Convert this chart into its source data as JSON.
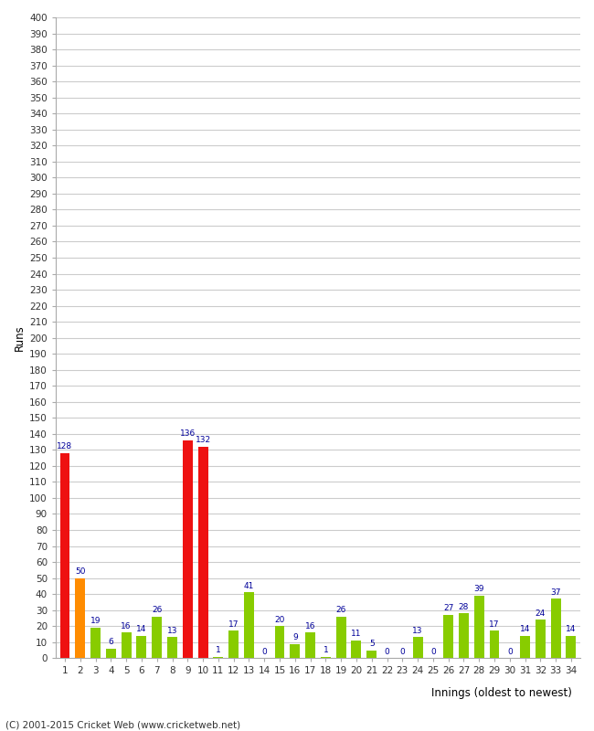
{
  "innings": [
    1,
    2,
    3,
    4,
    5,
    6,
    7,
    8,
    9,
    10,
    11,
    12,
    13,
    14,
    15,
    16,
    17,
    18,
    19,
    20,
    21,
    22,
    23,
    24,
    25,
    26,
    27,
    28,
    29,
    30,
    31,
    32,
    33,
    34
  ],
  "runs": [
    128,
    50,
    19,
    6,
    16,
    14,
    26,
    13,
    136,
    132,
    1,
    17,
    41,
    0,
    20,
    9,
    16,
    1,
    26,
    11,
    5,
    0,
    0,
    13,
    0,
    27,
    28,
    39,
    17,
    0,
    14,
    24,
    37,
    14
  ],
  "colors": [
    "#ee1111",
    "#ff8c00",
    "#88cc00",
    "#88cc00",
    "#88cc00",
    "#88cc00",
    "#88cc00",
    "#88cc00",
    "#ee1111",
    "#ee1111",
    "#88cc00",
    "#88cc00",
    "#88cc00",
    "#88cc00",
    "#88cc00",
    "#88cc00",
    "#88cc00",
    "#88cc00",
    "#88cc00",
    "#88cc00",
    "#88cc00",
    "#88cc00",
    "#88cc00",
    "#88cc00",
    "#88cc00",
    "#88cc00",
    "#88cc00",
    "#88cc00",
    "#88cc00",
    "#88cc00",
    "#88cc00",
    "#88cc00",
    "#88cc00",
    "#88cc00"
  ],
  "xlabel": "Innings (oldest to newest)",
  "ylabel": "Runs",
  "ytick_step": 10,
  "ylim": [
    0,
    400
  ],
  "background_color": "#ffffff",
  "plot_bg_color": "#ffffff",
  "grid_color": "#cccccc",
  "label_color": "#000099",
  "tick_color": "#333333",
  "footer": "(C) 2001-2015 Cricket Web (www.cricketweb.net)",
  "bar_width": 0.65
}
